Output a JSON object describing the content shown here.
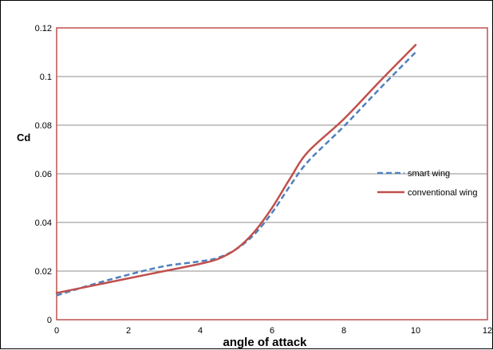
{
  "chart_data": {
    "type": "line",
    "title": "",
    "xlabel": "angle of attack",
    "ylabel": "Cd",
    "xlim": [
      0,
      12
    ],
    "ylim": [
      0,
      0.12
    ],
    "xticks": [
      0,
      2,
      4,
      6,
      8,
      10,
      12
    ],
    "xtick_labels": [
      "0",
      "2",
      "4",
      "6",
      "8",
      "10",
      "12"
    ],
    "yticks": [
      0,
      0.02,
      0.04,
      0.06,
      0.08,
      0.1,
      0.12
    ],
    "ytick_labels": [
      "0",
      "0.02",
      "0.04",
      "0.06",
      "0.08",
      "0.1",
      "0.12"
    ],
    "grid": "horizontal",
    "legend_position": "right",
    "series": [
      {
        "name": "smart wing",
        "color": "#4F81BD",
        "style": "dashed",
        "x": [
          0,
          1,
          2,
          3,
          4,
          4.5,
          5,
          5.5,
          6,
          6.5,
          7,
          8,
          9,
          10
        ],
        "y": [
          0.01,
          0.0145,
          0.0185,
          0.022,
          0.024,
          0.0255,
          0.029,
          0.035,
          0.044,
          0.055,
          0.065,
          0.0795,
          0.095,
          0.11
        ]
      },
      {
        "name": "conventional wing",
        "color": "#C0504D",
        "style": "solid",
        "x": [
          0,
          1,
          2,
          3,
          4,
          4.5,
          5,
          5.5,
          6,
          6.5,
          7,
          8,
          9,
          10
        ],
        "y": [
          0.011,
          0.014,
          0.017,
          0.02,
          0.023,
          0.025,
          0.029,
          0.036,
          0.046,
          0.058,
          0.069,
          0.0825,
          0.098,
          0.113
        ]
      }
    ]
  }
}
